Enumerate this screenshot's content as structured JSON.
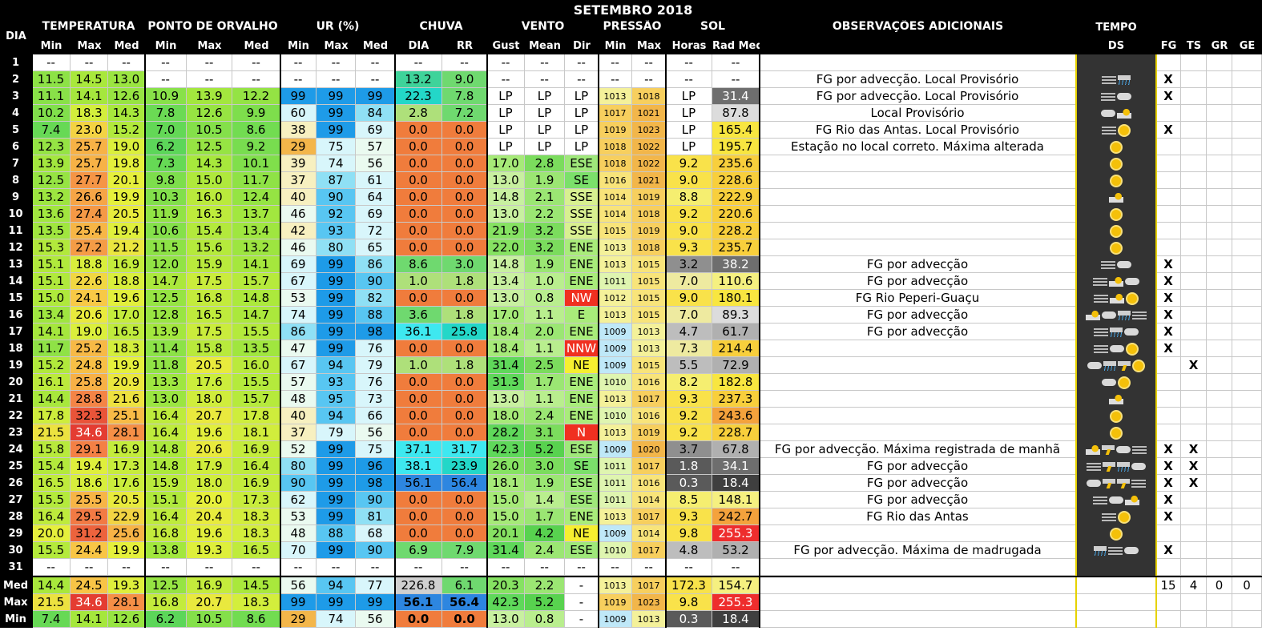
{
  "title": "SETEMBRO 2018",
  "header": {
    "dia": "DIA",
    "temperatura": "TEMPERATURA",
    "orvalho": "PONTO DE ORVALHO",
    "ur": "UR (%)",
    "chuva": "CHUVA",
    "vento": "VENTO",
    "pressao": "PRESSÃO",
    "sol": "SOL",
    "obs": "OBSERVAÇÕES ADICIONAIS",
    "tempo": "TEMPO",
    "sub": {
      "t_min": "Min",
      "t_max": "Max",
      "t_med": "Med",
      "d_min": "Min",
      "d_max": "Max",
      "d_med": "Med",
      "u_min": "Min",
      "u_max": "Max",
      "u_med": "Med",
      "dia": "DIA",
      "rr": "RR",
      "gust": "Gust",
      "mean": "Mean",
      "dir": "Dir",
      "p_min": "Min",
      "p_max": "Max",
      "horas": "Horas",
      "rad": "Rad Med",
      "ds": "DS",
      "fg": "FG",
      "ts": "TS",
      "gr": "GR",
      "ge": "GE"
    }
  },
  "rows": [
    {
      "d": "1",
      "v": [
        "--",
        "--",
        "--",
        "--",
        "--",
        "--",
        "--",
        "--",
        "--",
        "--",
        "--",
        "--",
        "--",
        "--",
        "--",
        "--",
        "--",
        "--"
      ],
      "obs": "",
      "w": [],
      "fg": "",
      "ts": ""
    },
    {
      "d": "2",
      "v": [
        "11.5",
        "14.5",
        "13.0",
        "--",
        "--",
        "--",
        "--",
        "--",
        "--",
        "13.2",
        "9.0",
        "--",
        "--",
        "--",
        "--",
        "--",
        "--",
        "--"
      ],
      "obs": "FG por advecção. Local Provisório",
      "w": [
        "fog",
        "rain"
      ],
      "fg": "X",
      "ts": ""
    },
    {
      "d": "3",
      "v": [
        "11.1",
        "14.1",
        "12.6",
        "10.9",
        "13.9",
        "12.2",
        "99",
        "99",
        "99",
        "22.3",
        "7.8",
        "LP",
        "LP",
        "LP",
        "1013",
        "1018",
        "LP",
        "31.4"
      ],
      "obs": "FG por advecção. Local Provisório",
      "w": [
        "fog",
        "cloud"
      ],
      "fg": "X",
      "ts": ""
    },
    {
      "d": "4",
      "v": [
        "10.2",
        "18.3",
        "14.3",
        "7.8",
        "12.6",
        "9.9",
        "60",
        "99",
        "84",
        "2.8",
        "7.2",
        "LP",
        "LP",
        "LP",
        "1017",
        "1021",
        "LP",
        "87.8"
      ],
      "obs": "Local Provisório",
      "w": [
        "cloud",
        "scloud"
      ],
      "fg": "",
      "ts": ""
    },
    {
      "d": "5",
      "v": [
        "7.4",
        "23.0",
        "15.2",
        "7.0",
        "10.5",
        "8.6",
        "38",
        "99",
        "69",
        "0.0",
        "0.0",
        "LP",
        "LP",
        "LP",
        "1019",
        "1023",
        "LP",
        "165.4"
      ],
      "obs": "FG Rio das Antas. Local Provisório",
      "w": [
        "fog",
        "sun"
      ],
      "fg": "X",
      "ts": ""
    },
    {
      "d": "6",
      "v": [
        "12.3",
        "25.7",
        "19.0",
        "6.2",
        "12.5",
        "9.2",
        "29",
        "75",
        "57",
        "0.0",
        "0.0",
        "LP",
        "LP",
        "LP",
        "1018",
        "1022",
        "LP",
        "195.7"
      ],
      "obs": "Estação no local correto. Máxima alterada",
      "w": [
        "sun"
      ],
      "fg": "",
      "ts": ""
    },
    {
      "d": "7",
      "v": [
        "13.9",
        "25.7",
        "19.8",
        "7.3",
        "14.3",
        "10.1",
        "39",
        "74",
        "56",
        "0.0",
        "0.0",
        "17.0",
        "2.8",
        "ESE",
        "1018",
        "1022",
        "9.2",
        "235.6"
      ],
      "obs": "",
      "w": [
        "sun"
      ],
      "fg": "",
      "ts": ""
    },
    {
      "d": "8",
      "v": [
        "12.5",
        "27.7",
        "20.1",
        "9.8",
        "15.0",
        "11.7",
        "37",
        "87",
        "61",
        "0.0",
        "0.0",
        "13.0",
        "1.9",
        "SE",
        "1016",
        "1021",
        "9.0",
        "228.6"
      ],
      "obs": "",
      "w": [
        "sun"
      ],
      "fg": "",
      "ts": ""
    },
    {
      "d": "9",
      "v": [
        "13.2",
        "26.6",
        "19.9",
        "10.3",
        "16.0",
        "12.4",
        "40",
        "90",
        "64",
        "0.0",
        "0.0",
        "14.8",
        "2.1",
        "SSE",
        "1014",
        "1019",
        "8.8",
        "222.9"
      ],
      "obs": "",
      "w": [
        "scloud"
      ],
      "fg": "",
      "ts": ""
    },
    {
      "d": "10",
      "v": [
        "13.6",
        "27.4",
        "20.5",
        "11.9",
        "16.3",
        "13.7",
        "46",
        "92",
        "69",
        "0.0",
        "0.0",
        "13.0",
        "2.2",
        "SSE",
        "1014",
        "1018",
        "9.2",
        "220.6"
      ],
      "obs": "",
      "w": [
        "sun"
      ],
      "fg": "",
      "ts": ""
    },
    {
      "d": "11",
      "v": [
        "13.5",
        "25.4",
        "19.4",
        "10.6",
        "15.4",
        "13.4",
        "42",
        "93",
        "72",
        "0.0",
        "0.0",
        "21.9",
        "3.2",
        "SSE",
        "1015",
        "1019",
        "9.0",
        "228.2"
      ],
      "obs": "",
      "w": [
        "sun"
      ],
      "fg": "",
      "ts": ""
    },
    {
      "d": "12",
      "v": [
        "15.3",
        "27.2",
        "21.2",
        "11.5",
        "15.6",
        "13.2",
        "46",
        "80",
        "65",
        "0.0",
        "0.0",
        "22.0",
        "3.2",
        "ENE",
        "1013",
        "1018",
        "9.3",
        "235.7"
      ],
      "obs": "",
      "w": [
        "sun"
      ],
      "fg": "",
      "ts": ""
    },
    {
      "d": "13",
      "v": [
        "15.1",
        "18.8",
        "16.9",
        "12.0",
        "15.9",
        "14.1",
        "69",
        "99",
        "86",
        "8.6",
        "3.0",
        "14.8",
        "1.9",
        "ENE",
        "1013",
        "1015",
        "3.2",
        "38.2"
      ],
      "obs": "FG por advecção",
      "w": [
        "fog",
        "cloud"
      ],
      "fg": "X",
      "ts": ""
    },
    {
      "d": "14",
      "v": [
        "15.1",
        "22.6",
        "18.8",
        "14.7",
        "17.5",
        "15.7",
        "67",
        "99",
        "90",
        "1.0",
        "1.8",
        "13.4",
        "1.0",
        "ENE",
        "1011",
        "1015",
        "7.0",
        "110.6"
      ],
      "obs": "FG por advecção",
      "w": [
        "fog",
        "scloud",
        "cloud"
      ],
      "fg": "X",
      "ts": ""
    },
    {
      "d": "15",
      "v": [
        "15.0",
        "24.1",
        "19.6",
        "12.5",
        "16.8",
        "14.8",
        "53",
        "99",
        "82",
        "0.0",
        "0.0",
        "13.0",
        "0.8",
        "NW",
        "1012",
        "1015",
        "9.0",
        "180.1"
      ],
      "obs": "FG Rio Peperi-Guaçu",
      "w": [
        "fog",
        "scloud",
        "sun"
      ],
      "fg": "X",
      "ts": ""
    },
    {
      "d": "16",
      "v": [
        "13.4",
        "20.6",
        "17.0",
        "12.8",
        "16.5",
        "14.7",
        "74",
        "99",
        "88",
        "3.6",
        "1.8",
        "17.0",
        "1.1",
        "E",
        "1013",
        "1015",
        "7.0",
        "89.3"
      ],
      "obs": "FG por advecção",
      "w": [
        "scloud",
        "cloud",
        "rain",
        "fog"
      ],
      "fg": "X",
      "ts": ""
    },
    {
      "d": "17",
      "v": [
        "14.1",
        "19.0",
        "16.5",
        "13.9",
        "17.5",
        "15.5",
        "86",
        "99",
        "98",
        "36.1",
        "25.8",
        "18.4",
        "2.0",
        "ENE",
        "1009",
        "1013",
        "4.7",
        "61.7"
      ],
      "obs": "FG por advecção",
      "w": [
        "fog",
        "rain",
        "cloud"
      ],
      "fg": "X",
      "ts": ""
    },
    {
      "d": "18",
      "v": [
        "11.7",
        "25.2",
        "18.3",
        "11.4",
        "15.8",
        "13.5",
        "47",
        "99",
        "76",
        "0.0",
        "0.0",
        "18.4",
        "1.1",
        "NNW",
        "1009",
        "1013",
        "7.3",
        "214.4"
      ],
      "obs": "",
      "w": [
        "fog",
        "cloud",
        "sun"
      ],
      "fg": "X",
      "ts": ""
    },
    {
      "d": "19",
      "v": [
        "15.2",
        "24.8",
        "19.9",
        "11.8",
        "20.5",
        "16.0",
        "67",
        "94",
        "79",
        "1.0",
        "1.8",
        "31.4",
        "2.5",
        "NE",
        "1009",
        "1015",
        "5.5",
        "72.9"
      ],
      "obs": "",
      "w": [
        "cloud",
        "rain",
        "storm",
        "sun"
      ],
      "fg": "",
      "ts": "X"
    },
    {
      "d": "20",
      "v": [
        "16.1",
        "25.8",
        "20.9",
        "13.3",
        "17.6",
        "15.5",
        "57",
        "93",
        "76",
        "0.0",
        "0.0",
        "31.3",
        "1.7",
        "ENE",
        "1010",
        "1016",
        "8.2",
        "182.8"
      ],
      "obs": "",
      "w": [
        "cloud",
        "sun"
      ],
      "fg": "",
      "ts": ""
    },
    {
      "d": "21",
      "v": [
        "14.4",
        "28.8",
        "21.6",
        "13.0",
        "18.0",
        "15.7",
        "48",
        "95",
        "73",
        "0.0",
        "0.0",
        "13.0",
        "1.1",
        "ENE",
        "1013",
        "1017",
        "9.3",
        "237.3"
      ],
      "obs": "",
      "w": [
        "scloud"
      ],
      "fg": "",
      "ts": ""
    },
    {
      "d": "22",
      "v": [
        "17.8",
        "32.3",
        "25.1",
        "16.4",
        "20.7",
        "17.8",
        "40",
        "94",
        "66",
        "0.0",
        "0.0",
        "18.0",
        "2.4",
        "ENE",
        "1010",
        "1016",
        "9.2",
        "243.6"
      ],
      "obs": "",
      "w": [
        "sun"
      ],
      "fg": "",
      "ts": ""
    },
    {
      "d": "23",
      "v": [
        "21.5",
        "34.6",
        "28.1",
        "16.4",
        "19.6",
        "18.1",
        "37",
        "79",
        "56",
        "0.0",
        "0.0",
        "28.2",
        "3.1",
        "N",
        "1013",
        "1019",
        "9.2",
        "228.7"
      ],
      "obs": "",
      "w": [
        "sun"
      ],
      "fg": "",
      "ts": ""
    },
    {
      "d": "24",
      "v": [
        "15.8",
        "29.1",
        "16.9",
        "14.8",
        "20.6",
        "16.9",
        "52",
        "99",
        "75",
        "37.1",
        "31.7",
        "42.3",
        "5.2",
        "ESE",
        "1009",
        "1020",
        "3.7",
        "67.8"
      ],
      "obs": "FG por advecção. Máxima registrada de manhã",
      "w": [
        "scloud",
        "storm",
        "cloud",
        "fog"
      ],
      "fg": "X",
      "ts": "X"
    },
    {
      "d": "25",
      "v": [
        "15.4",
        "19.4",
        "17.3",
        "14.8",
        "17.9",
        "16.4",
        "80",
        "99",
        "96",
        "38.1",
        "23.9",
        "26.0",
        "3.0",
        "SE",
        "1011",
        "1017",
        "1.8",
        "34.1"
      ],
      "obs": "FG por advecção",
      "w": [
        "fog",
        "storm",
        "rain",
        "cloud"
      ],
      "fg": "X",
      "ts": "X"
    },
    {
      "d": "26",
      "v": [
        "16.5",
        "18.6",
        "17.6",
        "15.9",
        "18.0",
        "16.9",
        "90",
        "99",
        "98",
        "56.1",
        "56.4",
        "18.1",
        "1.9",
        "ESE",
        "1011",
        "1016",
        "0.3",
        "18.4"
      ],
      "obs": "FG por advecção",
      "w": [
        "cloud",
        "storm",
        "storm",
        "fog"
      ],
      "fg": "X",
      "ts": "X"
    },
    {
      "d": "27",
      "v": [
        "15.5",
        "25.5",
        "20.5",
        "15.1",
        "20.0",
        "17.3",
        "62",
        "99",
        "90",
        "0.0",
        "0.0",
        "15.0",
        "1.4",
        "ESE",
        "1011",
        "1014",
        "8.5",
        "148.1"
      ],
      "obs": "FG por advecção",
      "w": [
        "fog",
        "cloud",
        "scloud"
      ],
      "fg": "X",
      "ts": ""
    },
    {
      "d": "28",
      "v": [
        "16.4",
        "29.5",
        "22.9",
        "16.4",
        "20.4",
        "18.3",
        "53",
        "99",
        "81",
        "0.0",
        "0.0",
        "15.0",
        "1.7",
        "ENE",
        "1013",
        "1017",
        "9.3",
        "242.7"
      ],
      "obs": "FG Rio das Antas",
      "w": [
        "fog",
        "sun"
      ],
      "fg": "X",
      "ts": ""
    },
    {
      "d": "29",
      "v": [
        "20.0",
        "31.2",
        "25.6",
        "16.8",
        "19.6",
        "18.3",
        "48",
        "88",
        "68",
        "0.0",
        "0.0",
        "20.1",
        "4.2",
        "NE",
        "1009",
        "1014",
        "9.8",
        "255.3"
      ],
      "obs": "",
      "w": [
        "sun"
      ],
      "fg": "",
      "ts": ""
    },
    {
      "d": "30",
      "v": [
        "15.5",
        "24.4",
        "19.9",
        "13.8",
        "19.3",
        "16.5",
        "70",
        "99",
        "90",
        "6.9",
        "7.9",
        "31.4",
        "2.4",
        "ESE",
        "1010",
        "1017",
        "4.8",
        "53.2"
      ],
      "obs": "FG por advecção. Máxima de madrugada",
      "w": [
        "rain",
        "fog",
        "cloud"
      ],
      "fg": "X",
      "ts": ""
    },
    {
      "d": "31",
      "v": [
        "--",
        "--",
        "--",
        "--",
        "--",
        "--",
        "--",
        "--",
        "--",
        "--",
        "--",
        "--",
        "--",
        "--",
        "--",
        "--",
        "--",
        "--"
      ],
      "obs": "",
      "w": [],
      "fg": "",
      "ts": ""
    }
  ],
  "summary": [
    {
      "d": "Med",
      "v": [
        "14.4",
        "24.5",
        "19.3",
        "12.5",
        "16.9",
        "14.5",
        "56",
        "94",
        "77",
        "226.8",
        "6.1",
        "20.3",
        "2.2",
        "-",
        "1013",
        "1017",
        "172.3",
        "154.7"
      ],
      "fg": "15",
      "ts": "4",
      "gr": "0",
      "ge": "0"
    },
    {
      "d": "Max",
      "v": [
        "21.5",
        "34.6",
        "28.1",
        "16.8",
        "20.7",
        "18.3",
        "99",
        "99",
        "99",
        "56.1",
        "56.4",
        "42.3",
        "5.2",
        "-",
        "1019",
        "1023",
        "9.8",
        "255.3"
      ],
      "fg": "",
      "ts": "",
      "gr": "",
      "ge": ""
    },
    {
      "d": "Min",
      "v": [
        "7.4",
        "14.1",
        "12.6",
        "6.2",
        "10.5",
        "8.6",
        "29",
        "74",
        "56",
        "0.0",
        "0.0",
        "13.0",
        "0.8",
        "-",
        "1009",
        "1013",
        "0.3",
        "18.4"
      ],
      "fg": "",
      "ts": "",
      "gr": "",
      "ge": ""
    }
  ]
}
